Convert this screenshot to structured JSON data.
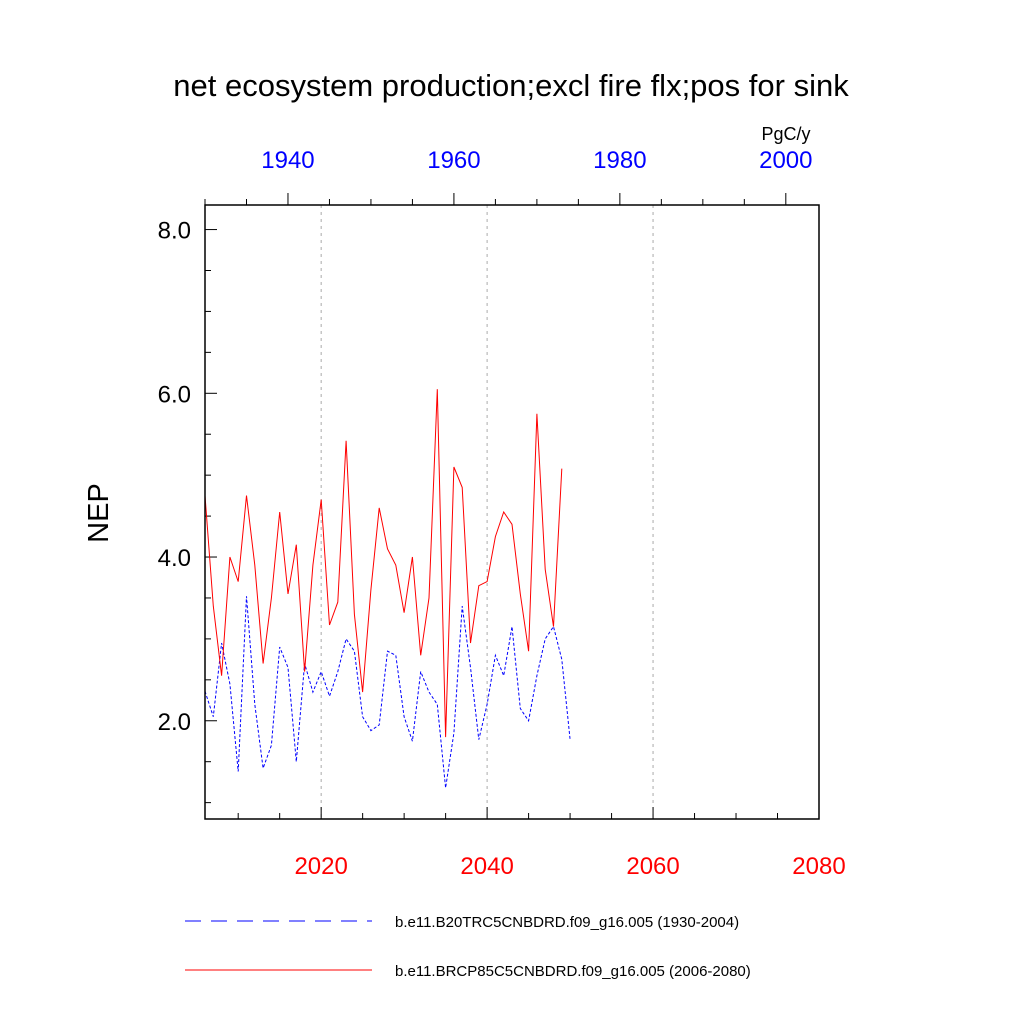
{
  "chart_data": {
    "type": "line",
    "title": "net ecosystem production;excl fire flx;pos for sink",
    "ylabel": "NEP",
    "units": "PgC/y",
    "ylim": [
      0.8,
      8.3
    ],
    "yticks": [
      2.0,
      4.0,
      6.0,
      8.0
    ],
    "ytick_labels": [
      "2.0",
      "4.0",
      "6.0",
      "8.0"
    ],
    "x_bottom": {
      "range": [
        2006,
        2080
      ],
      "ticks": [
        2020,
        2040,
        2060,
        2080
      ],
      "tick_labels": [
        "2020",
        "2040",
        "2060",
        "2080"
      ],
      "color": "#ff0000"
    },
    "x_top": {
      "range": [
        1930,
        2004
      ],
      "ticks": [
        1940,
        1960,
        1980,
        2000
      ],
      "tick_labels": [
        "1940",
        "1960",
        "1980",
        "2000"
      ],
      "color": "#0000ff"
    },
    "series": [
      {
        "name": "b.e11.B20TRC5CNBDRD.f09_g16.005 (1930-2004)",
        "color": "#0000ff",
        "style": "dashed",
        "axis": "top",
        "x_start": 1930,
        "values": [
          2.36,
          2.05,
          2.95,
          2.45,
          1.38,
          3.52,
          2.2,
          1.42,
          1.7,
          2.9,
          2.65,
          1.5,
          2.7,
          2.35,
          2.6,
          2.3,
          2.6,
          3.0,
          2.85,
          2.05,
          1.88,
          1.95,
          2.85,
          2.8,
          2.05,
          1.75,
          2.6,
          2.35,
          2.2,
          1.18,
          1.85,
          3.4,
          2.65,
          1.77,
          2.2,
          2.8,
          2.55,
          3.15,
          2.15,
          2.0,
          2.55,
          3.0,
          3.15,
          2.75,
          1.77
        ]
      },
      {
        "name": "b.e11.BRCP85C5CNBDRD.f09_g16.005 (2006-2080)",
        "color": "#ff0000",
        "style": "solid",
        "axis": "bottom",
        "x_start": 2006,
        "values": [
          4.75,
          3.4,
          2.55,
          4.0,
          3.7,
          4.75,
          3.9,
          2.7,
          3.5,
          4.55,
          3.55,
          4.15,
          2.6,
          3.9,
          4.7,
          3.17,
          3.45,
          5.42,
          3.3,
          2.35,
          3.6,
          4.6,
          4.1,
          3.9,
          3.32,
          4.0,
          2.8,
          3.5,
          6.05,
          1.8,
          5.1,
          4.85,
          2.95,
          3.65,
          3.7,
          4.25,
          4.55,
          4.4,
          3.55,
          2.85,
          5.75,
          3.85,
          3.15,
          5.08
        ]
      }
    ],
    "legend": {
      "position": "bottom",
      "entries": [
        "b.e11.B20TRC5CNBDRD.f09_g16.005 (1930-2004)",
        "b.e11.BRCP85C5CNBDRD.f09_g16.005 (2006-2080)"
      ]
    }
  }
}
